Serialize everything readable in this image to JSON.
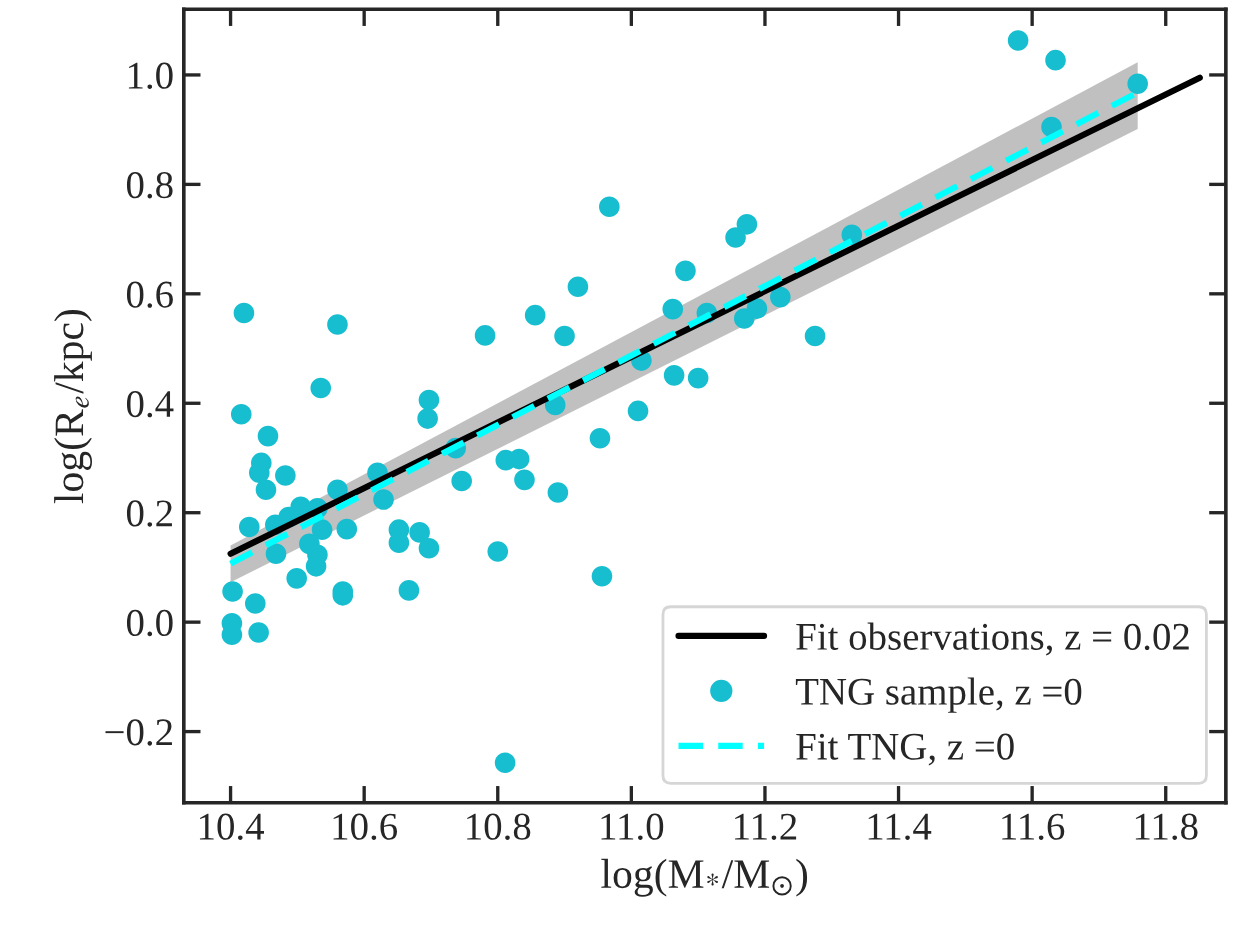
{
  "chart_data": {
    "type": "scatter",
    "xlabel": "log(M$_{*}$/M$_{⊙}$)",
    "ylabel": "log(R$_{e}$/kpc)",
    "xlim": [
      10.33,
      11.89
    ],
    "ylim": [
      -0.33,
      1.12
    ],
    "xticks": [
      10.4,
      10.6,
      10.8,
      {
        "value": 11,
        "label": "11.0"
      },
      11.2,
      11.4,
      11.6,
      11.8
    ],
    "yticks": [
      -0.2,
      {
        "value": 0,
        "label": "0.0"
      },
      0.2,
      0.4,
      0.6,
      0.8,
      {
        "value": 1,
        "label": "1.0"
      }
    ],
    "grid": false,
    "legend": "bottom right",
    "series": [
      {
        "name": "Fit observations, z = 0.02",
        "type": "line",
        "color": "#000000",
        "line_style": "solid",
        "marker": "none",
        "x": [
          10.4,
          11.851
        ],
        "values": [
          0.125,
          0.995
        ]
      },
      {
        "name": "TNG sample, z =0",
        "color": "#17becf",
        "marker": "circle",
        "x": [
          10.42,
          10.56,
          10.535,
          10.416,
          10.456,
          10.446,
          10.443,
          10.482,
          10.453,
          10.56,
          10.62,
          10.697,
          10.695,
          10.737,
          10.746,
          10.781,
          10.856,
          10.9,
          10.92,
          10.967,
          10.886,
          10.812,
          10.832,
          10.84,
          10.89,
          10.953,
          11.01,
          11.015,
          11.062,
          11.081,
          11.064,
          11.1,
          11.113,
          11.156,
          11.173,
          11.33,
          11.169,
          11.188,
          11.223,
          11.275,
          11.579,
          11.635,
          11.758,
          11.629,
          10.629,
          10.428,
          10.467,
          10.487,
          10.505,
          10.53,
          10.537,
          10.574,
          10.518,
          10.468,
          10.53,
          10.528,
          10.499,
          10.568,
          10.568,
          10.403,
          10.437,
          10.402,
          10.402,
          10.442,
          10.652,
          10.652,
          10.683,
          10.697,
          10.667,
          10.8,
          10.956,
          10.811
        ],
        "values": [
          0.565,
          0.544,
          0.428,
          0.38,
          0.34,
          0.291,
          0.273,
          0.268,
          0.242,
          0.242,
          0.273,
          0.406,
          0.372,
          0.318,
          0.258,
          0.524,
          0.561,
          0.523,
          0.613,
          0.759,
          0.397,
          0.296,
          0.298,
          0.26,
          0.237,
          0.336,
          0.386,
          0.478,
          0.572,
          0.642,
          0.451,
          0.446,
          0.565,
          0.703,
          0.727,
          0.708,
          0.555,
          0.573,
          0.594,
          0.523,
          1.063,
          1.027,
          0.984,
          0.905,
          0.224,
          0.174,
          0.178,
          0.192,
          0.211,
          0.208,
          0.169,
          0.17,
          0.143,
          0.125,
          0.123,
          0.102,
          0.08,
          0.056,
          0.049,
          0.056,
          0.034,
          -0.002,
          -0.023,
          -0.019,
          0.169,
          0.145,
          0.164,
          0.135,
          0.058,
          0.129,
          0.084,
          -0.257
        ]
      },
      {
        "name": "Fit TNG, z =0",
        "type": "line",
        "color": "#00ffff",
        "line_style": "dashed",
        "marker": "none",
        "x": [
          10.4,
          11.758
        ],
        "values": [
          0.107,
          0.968
        ],
        "lower": [
          0.073,
          0.901
        ],
        "upper": [
          0.14,
          1.023
        ]
      }
    ]
  }
}
